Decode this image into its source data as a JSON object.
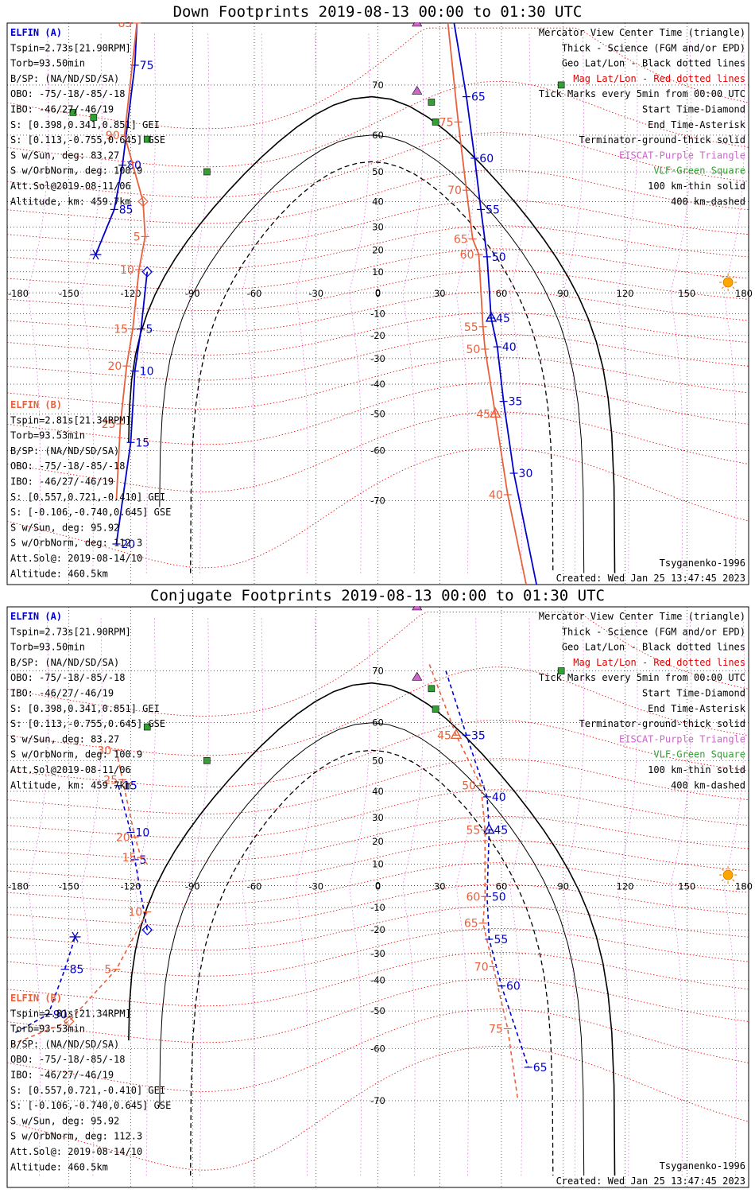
{
  "panels": [
    {
      "title": "Down Footprints 2019-08-13 00:00 to 01:30 UTC",
      "elfin_a": {
        "label": "ELFIN (A)",
        "color": "#0000cc",
        "lines": [
          "Tspin=2.73s[21.90RPM]",
          "Torb=93.50min",
          "B/SP: (NA/ND/SD/SA)",
          "OBO: -75/-18/-85/-18",
          "IBO: -46/27/-46/19",
          "S: [0.398,0.341,0.851] GEI",
          "S: [0.113,-0.755,0.645] GSE",
          "S w/Sun, deg: 83.27",
          "S w/OrbNorm, deg: 100.9",
          "Att.Sol@2019-08-11/06",
          "Altitude, km: 459.7km"
        ]
      },
      "elfin_b": {
        "label": "ELFIN (B)",
        "color": "#e8603c",
        "lines": [
          "Tspin=2.81s[21.34RPM]",
          "Torb=93.53min",
          "B/SP: (NA/ND/SD/SA)",
          "OBO: -75/-18/-85/-18",
          "IBO: -46/27/-46/19",
          "S: [0.557,0.721,-0.410] GEI",
          "S: [-0.106,-0.740,0.645] GSE",
          "S w/Sun, deg: 95.92",
          "S w/OrbNorm, deg: 112.3",
          "Att.Sol@: 2019-08-14/10",
          "Altitude: 460.5km"
        ]
      },
      "legend": [
        "Mercator View Center Time (triangle)",
        "Thick - Science (FGM and/or EPD)",
        "Geo Lat/Lon - Black dotted lines",
        "Mag Lat/Lon - Red dotted lines",
        "Tick Marks every 5min from 00:00 UTC",
        "Start Time-Diamond",
        "End Time-Asterisk",
        "Terminator-ground-thick solid",
        "EISCAT-Purple Triangle",
        "VLF-Green Square",
        "100 km-thin solid",
        "400 km-dashed"
      ],
      "model": "Tsyganenko-1996",
      "created": "Created: Wed Jan 25 13:47:45 2023"
    },
    {
      "title": "Conjugate Footprints 2019-08-13 00:00 to 01:30 UTC",
      "elfin_a": {
        "label": "ELFIN (A)",
        "color": "#0000cc",
        "lines": [
          "Tspin=2.73s[21.90RPM]",
          "Torb=93.50min",
          "B/SP: (NA/ND/SD/SA)",
          "OBO: -75/-18/-85/-18",
          "IBO: -46/27/-46/19",
          "S: [0.398,0.341,0.851] GEI",
          "S: [0.113,-0.755,0.645] GSE",
          "S w/Sun, deg: 83.27",
          "S w/OrbNorm, deg: 100.9",
          "Att.Sol@2019-08-11/06",
          "Altitude, km: 459.7km"
        ]
      },
      "elfin_b": {
        "label": "ELFIN (B)",
        "color": "#e8603c",
        "lines": [
          "Tspin=2.81s[21.34RPM]",
          "Torb=93.53min",
          "B/SP: (NA/ND/SD/SA)",
          "OBO: -75/-18/-85/-18",
          "IBO: -46/27/-46/19",
          "S: [0.557,0.721,-0.410] GEI",
          "S: [-0.106,-0.740,0.645] GSE",
          "S w/Sun, deg: 95.92",
          "S w/OrbNorm, deg: 112.3",
          "Att.Sol@: 2019-08-14/10",
          "Altitude: 460.5km"
        ]
      },
      "legend": [
        "Mercator View Center Time (triangle)",
        "Thick - Science (FGM and/or EPD)",
        "Geo Lat/Lon - Black dotted lines",
        "Mag Lat/Lon - Red dotted lines",
        "Tick Marks every 5min from 00:00 UTC",
        "Start Time-Diamond",
        "End Time-Asterisk",
        "Terminator-ground-thick solid",
        "EISCAT-Purple Triangle",
        "VLF-Green Square",
        "100 km-thin solid",
        "400 km-dashed"
      ],
      "model": "Tsyganenko-1996",
      "created": "Created: Wed Jan 25 13:47:45 2023"
    }
  ],
  "colors": {
    "elfin_a": "#0000cc",
    "elfin_b": "#e8603c",
    "mag_grid": "#e00000",
    "geo_grid": "#000000",
    "eiscat": "#cc66cc",
    "vlf": "#33a033",
    "sun": "#ffa500",
    "legend_red": "#e00000",
    "legend_purple": "#cc66cc",
    "legend_green": "#33a033"
  },
  "chart_data": [
    {
      "type": "scatter",
      "title": "Down Footprints 2019-08-13 00:00 to 01:30 UTC",
      "projection": "mercator",
      "xticks": [
        -180,
        -150,
        -120,
        -90,
        -60,
        -30,
        0,
        30,
        60,
        90,
        120,
        150,
        180
      ],
      "yticks": [
        70,
        60,
        50,
        40,
        30,
        20,
        10,
        0,
        -10,
        -20,
        -30,
        -40,
        -50,
        -60,
        -70
      ],
      "xlim": [
        -180,
        180
      ],
      "ylim": [
        -80,
        78
      ],
      "series": [
        {
          "name": "ELFIN (A)",
          "points": [
            {
              "lon": -117,
              "lat": 78,
              "label": ""
            },
            {
              "lon": -118,
              "lat": 73,
              "label": "75"
            },
            {
              "lon": -124,
              "lat": 52,
              "label": "80"
            },
            {
              "lon": -128,
              "lat": 37,
              "label": "85"
            },
            {
              "lon": -137,
              "lat": 18,
              "label": "",
              "marker": "asterisk"
            }
          ]
        },
        {
          "name": "ELFIN (B)",
          "points": [
            {
              "lon": -117,
              "lat": 78,
              "label": "85"
            },
            {
              "lon": -123,
              "lat": 60,
              "label": "90"
            },
            {
              "lon": -114,
              "lat": 40,
              "label": "",
              "marker": "diamond"
            },
            {
              "lon": -113,
              "lat": 26,
              "label": "5"
            },
            {
              "lon": -116,
              "lat": 11,
              "label": "10"
            },
            {
              "lon": -119,
              "lat": -17,
              "label": "15"
            },
            {
              "lon": -122,
              "lat": -33,
              "label": "20"
            },
            {
              "lon": -125,
              "lat": -53,
              "label": "25"
            },
            {
              "lon": -127,
              "lat": -70,
              "label": ""
            }
          ]
        },
        {
          "name": "ELFIN (A)",
          "points": [
            {
              "lon": -112,
              "lat": 10,
              "label": "",
              "marker": "diamond"
            },
            {
              "lon": -115,
              "lat": -17,
              "label": "5"
            },
            {
              "lon": -118,
              "lat": -35,
              "label": "10"
            },
            {
              "lon": -120,
              "lat": -58,
              "label": "15"
            },
            {
              "lon": -127,
              "lat": -76,
              "label": "20"
            }
          ]
        },
        {
          "name": "ELFIN (A)",
          "points": [
            {
              "lon": 37,
              "lat": 78,
              "label": ""
            },
            {
              "lon": 43,
              "lat": 68,
              "label": "65"
            },
            {
              "lon": 47,
              "lat": 54,
              "label": "60"
            },
            {
              "lon": 50,
              "lat": 37,
              "label": "55"
            },
            {
              "lon": 53,
              "lat": 17,
              "label": "50"
            },
            {
              "lon": 55,
              "lat": -12,
              "label": "45",
              "marker": "triangle"
            },
            {
              "lon": 58,
              "lat": -25,
              "label": "40"
            },
            {
              "lon": 61,
              "lat": -46,
              "label": "35"
            },
            {
              "lon": 66,
              "lat": -65,
              "label": "30"
            },
            {
              "lon": 77,
              "lat": -80,
              "label": ""
            }
          ]
        },
        {
          "name": "ELFIN (B)",
          "points": [
            {
              "lon": 34,
              "lat": 78,
              "label": ""
            },
            {
              "lon": 39,
              "lat": 63,
              "label": "75"
            },
            {
              "lon": 43,
              "lat": 44,
              "label": "70"
            },
            {
              "lon": 46,
              "lat": 25,
              "label": "65"
            },
            {
              "lon": 49,
              "lat": 18,
              "label": "60"
            },
            {
              "lon": 51,
              "lat": -16,
              "label": "55"
            },
            {
              "lon": 52,
              "lat": -26,
              "label": "50"
            },
            {
              "lon": 57,
              "lat": -50,
              "label": "45",
              "marker": "triangle"
            },
            {
              "lon": 63,
              "lat": -69,
              "label": "40"
            },
            {
              "lon": 72,
              "lat": -80,
              "label": ""
            }
          ]
        }
      ],
      "stations": {
        "eiscat": [
          {
            "lon": 19,
            "lat": 78
          },
          {
            "lon": 19,
            "lat": 69
          }
        ],
        "vlf": [
          {
            "lon": -148,
            "lat": 65
          },
          {
            "lon": -138,
            "lat": 64
          },
          {
            "lon": -112,
            "lat": 59
          },
          {
            "lon": -83,
            "lat": 50
          },
          {
            "lon": 26,
            "lat": 67
          },
          {
            "lon": 28,
            "lat": 63
          },
          {
            "lon": 89,
            "lat": 70
          }
        ]
      }
    },
    {
      "type": "scatter",
      "title": "Conjugate Footprints 2019-08-13 00:00 to 01:30 UTC",
      "projection": "mercator",
      "xticks": [
        -180,
        -150,
        -120,
        -90,
        -60,
        -30,
        0,
        30,
        60,
        90,
        120,
        150,
        180
      ],
      "yticks": [
        70,
        60,
        50,
        40,
        30,
        20,
        10,
        0,
        -10,
        -20,
        -30,
        -40,
        -50,
        -60,
        -70
      ],
      "xlim": [
        -180,
        180
      ],
      "ylim": [
        -80,
        78
      ],
      "series": [
        {
          "name": "ELFIN (A)",
          "points": [
            {
              "lon": -112,
              "lat": -20,
              "label": "",
              "marker": "diamond"
            },
            {
              "lon": -118,
              "lat": 12,
              "label": "5"
            },
            {
              "lon": -120,
              "lat": 24,
              "label": "10"
            },
            {
              "lon": -126,
              "lat": 42,
              "label": "15"
            }
          ]
        },
        {
          "name": "ELFIN (B)",
          "points": [
            {
              "lon": -112,
              "lat": 10,
              "label": ""
            },
            {
              "lon": -115,
              "lat": 13,
              "label": "15"
            },
            {
              "lon": -118,
              "lat": 22,
              "label": "20"
            },
            {
              "lon": -124,
              "lat": 44,
              "label": "25"
            },
            {
              "lon": -127,
              "lat": 53,
              "label": "30"
            }
          ]
        },
        {
          "name": "ELFIN (A)",
          "points": [
            {
              "lon": -176,
              "lat": -56,
              "label": ""
            },
            {
              "lon": -160,
              "lat": -51,
              "label": "90"
            },
            {
              "lon": -152,
              "lat": -36,
              "label": "85"
            },
            {
              "lon": -147,
              "lat": -23,
              "label": "",
              "marker": "asterisk"
            }
          ]
        },
        {
          "name": "ELFIN (B)",
          "points": [
            {
              "lon": -178,
              "lat": -59,
              "label": ""
            },
            {
              "lon": -150,
              "lat": -53,
              "label": "",
              "marker": "diamond"
            },
            {
              "lon": -127,
              "lat": -36,
              "label": "5"
            },
            {
              "lon": -112,
              "lat": -12,
              "label": "10"
            }
          ]
        },
        {
          "name": "ELFIN (A)",
          "points": [
            {
              "lon": 33,
              "lat": 70,
              "label": ""
            },
            {
              "lon": 43,
              "lat": 57,
              "label": "35"
            },
            {
              "lon": 53,
              "lat": 38,
              "label": "40"
            },
            {
              "lon": 54,
              "lat": 25,
              "label": "45",
              "marker": "triangle"
            },
            {
              "lon": 53,
              "lat": -5,
              "label": "50"
            },
            {
              "lon": 54,
              "lat": -24,
              "label": "55"
            },
            {
              "lon": 60,
              "lat": -42,
              "label": "60"
            },
            {
              "lon": 73,
              "lat": -64,
              "label": "65"
            }
          ]
        },
        {
          "name": "ELFIN (B)",
          "points": [
            {
              "lon": 25,
              "lat": 71,
              "label": ""
            },
            {
              "lon": 38,
              "lat": 57,
              "label": "45",
              "marker": "triangle"
            },
            {
              "lon": 50,
              "lat": 42,
              "label": "50"
            },
            {
              "lon": 52,
              "lat": 25,
              "label": "55"
            },
            {
              "lon": 52,
              "lat": -5,
              "label": "60"
            },
            {
              "lon": 51,
              "lat": -17,
              "label": "65"
            },
            {
              "lon": 56,
              "lat": -35,
              "label": "70"
            },
            {
              "lon": 63,
              "lat": -55,
              "label": "75"
            },
            {
              "lon": 68,
              "lat": -70,
              "label": ""
            }
          ]
        }
      ],
      "stations": {
        "eiscat": [
          {
            "lon": 19,
            "lat": 78
          },
          {
            "lon": 19,
            "lat": 69
          }
        ],
        "vlf": [
          {
            "lon": -112,
            "lat": 59
          },
          {
            "lon": -83,
            "lat": 50
          },
          {
            "lon": 26,
            "lat": 67
          },
          {
            "lon": 28,
            "lat": 63
          },
          {
            "lon": 89,
            "lat": 70
          }
        ]
      }
    }
  ]
}
